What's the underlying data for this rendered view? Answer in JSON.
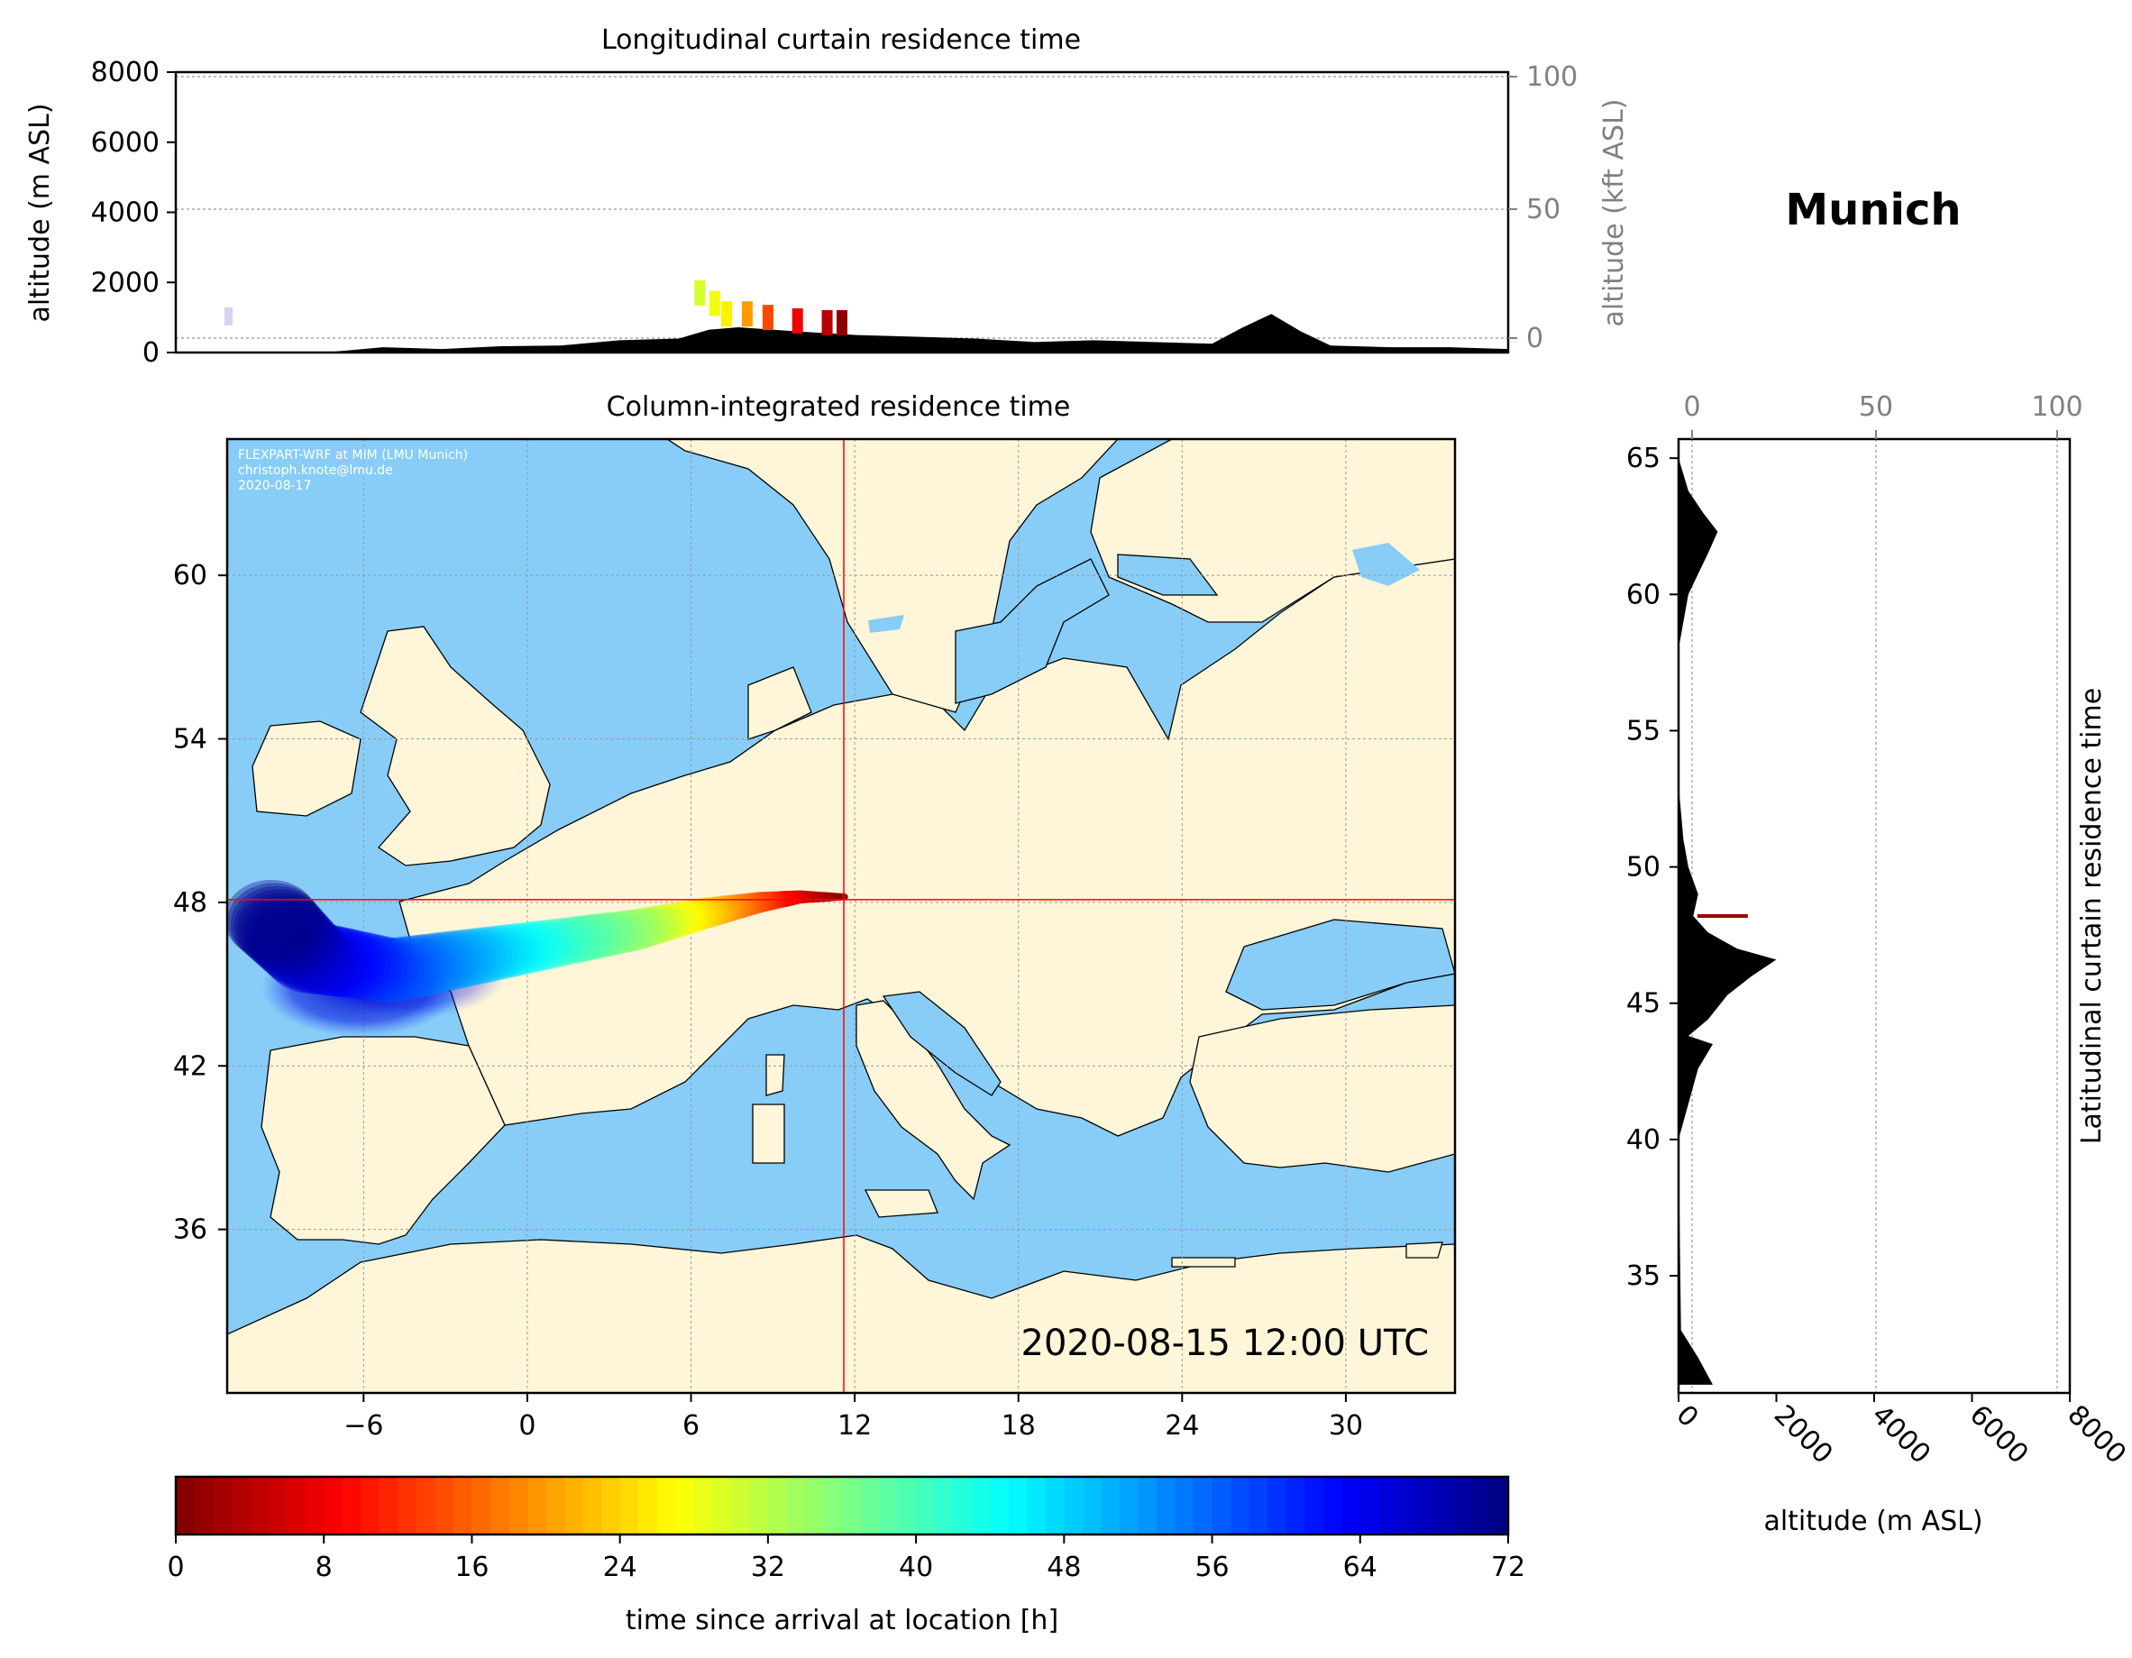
{
  "station": "Munich",
  "credits": [
    "FLEXPART-WRF at MIM (LMU Munich)",
    "christoph.knote@lmu.de",
    "2020-08-17"
  ],
  "timestamp": "2020-08-15 12:00 UTC",
  "colors": {
    "ocean": "#87cdf8",
    "land": "#fff6d9",
    "crosshair": "#ff0000",
    "terrain": "#000000"
  },
  "chart_data": [
    {
      "type": "area",
      "title": "Longitudinal curtain residence time",
      "ylabel": "altitude (m ASL)",
      "ylim": [
        0,
        8000
      ],
      "yticks": [
        "0",
        "2000",
        "4000",
        "6000",
        "8000"
      ],
      "ylabel_right": "altitude (kft ASL)",
      "yticks_right": [
        "0",
        "50",
        "100"
      ],
      "x": [
        -11,
        -7,
        -6,
        -4,
        -2,
        0,
        2,
        4,
        6,
        7,
        8,
        10,
        12,
        14,
        16,
        18,
        20,
        22,
        24,
        25,
        26,
        27,
        28,
        30,
        32,
        34
      ],
      "terrain_altitude_m": [
        0,
        0,
        0,
        150,
        100,
        180,
        200,
        350,
        400,
        650,
        720,
        600,
        500,
        450,
        400,
        300,
        350,
        300,
        250,
        700,
        1100,
        600,
        200,
        150,
        150,
        100
      ],
      "plume": [
        {
          "lon": 6.7,
          "alt_m": 1700,
          "hours": 30
        },
        {
          "lon": 7.2,
          "alt_m": 1400,
          "hours": 28
        },
        {
          "lon": 7.6,
          "alt_m": 1100,
          "hours": 26
        },
        {
          "lon": 8.3,
          "alt_m": 1100,
          "hours": 20
        },
        {
          "lon": 9.0,
          "alt_m": 1000,
          "hours": 14
        },
        {
          "lon": 10.0,
          "alt_m": 900,
          "hours": 8
        },
        {
          "lon": 11.0,
          "alt_m": 850,
          "hours": 4
        },
        {
          "lon": 11.5,
          "alt_m": 850,
          "hours": 1
        }
      ]
    },
    {
      "type": "heatmap",
      "title": "Column-integrated residence time",
      "xlim": [
        -11,
        34
      ],
      "ylim": [
        30,
        65
      ],
      "xticks": [
        "−6",
        "0",
        "6",
        "12",
        "18",
        "24",
        "30"
      ],
      "yticks": [
        "36",
        "42",
        "48",
        "54",
        "60"
      ],
      "location": {
        "lon": 11.6,
        "lat": 48.1
      },
      "trajectory": [
        {
          "lon": 11.6,
          "lat": 48.2,
          "hours": 0
        },
        {
          "lon": 10.0,
          "lat": 48.2,
          "hours": 6
        },
        {
          "lon": 8.5,
          "lat": 48.0,
          "hours": 14
        },
        {
          "lon": 6.5,
          "lat": 47.6,
          "hours": 24
        },
        {
          "lon": 4.0,
          "lat": 47.0,
          "hours": 34
        },
        {
          "lon": 1.0,
          "lat": 46.5,
          "hours": 42
        },
        {
          "lon": -2.0,
          "lat": 46.0,
          "hours": 50
        },
        {
          "lon": -5.0,
          "lat": 45.5,
          "hours": 58
        },
        {
          "lon": -8.0,
          "lat": 46.0,
          "hours": 66
        },
        {
          "lon": -9.5,
          "lat": 47.5,
          "hours": 72
        }
      ]
    },
    {
      "type": "area",
      "title": "Latitudinal curtain residence time",
      "xlabel": "altitude (m ASL)",
      "xlim": [
        0,
        8000
      ],
      "xticks": [
        "0",
        "2000",
        "4000",
        "6000",
        "8000"
      ],
      "xticks_top": [
        "0",
        "50",
        "100"
      ],
      "ylim": [
        30.7,
        65.7
      ],
      "yticks": [
        "35",
        "40",
        "45",
        "50",
        "55",
        "60",
        "65"
      ],
      "lat": [
        31.0,
        32.0,
        33.0,
        40.0,
        42.6,
        43.5,
        43.8,
        44.4,
        45.3,
        46.0,
        46.6,
        47.0,
        47.6,
        48.2,
        49.0,
        50.0,
        51.0,
        53.0,
        55.0,
        58.0,
        60.0,
        61.5,
        62.3,
        63.0,
        63.8,
        65.0
      ],
      "terrain_altitude_m": [
        700,
        400,
        50,
        0,
        400,
        700,
        200,
        600,
        1000,
        1500,
        2000,
        1200,
        600,
        300,
        400,
        200,
        100,
        0,
        0,
        0,
        200,
        600,
        800,
        500,
        200,
        0
      ],
      "plume": [
        {
          "lat": 48.2,
          "alt_m": 900,
          "hours": 2
        }
      ]
    },
    {
      "type": "colorbar",
      "xlabel": "time since arrival at location [h]",
      "range": [
        0,
        72
      ],
      "ticks": [
        "0",
        "8",
        "16",
        "24",
        "32",
        "40",
        "48",
        "56",
        "64",
        "72"
      ],
      "colormap": "jet_r"
    }
  ]
}
